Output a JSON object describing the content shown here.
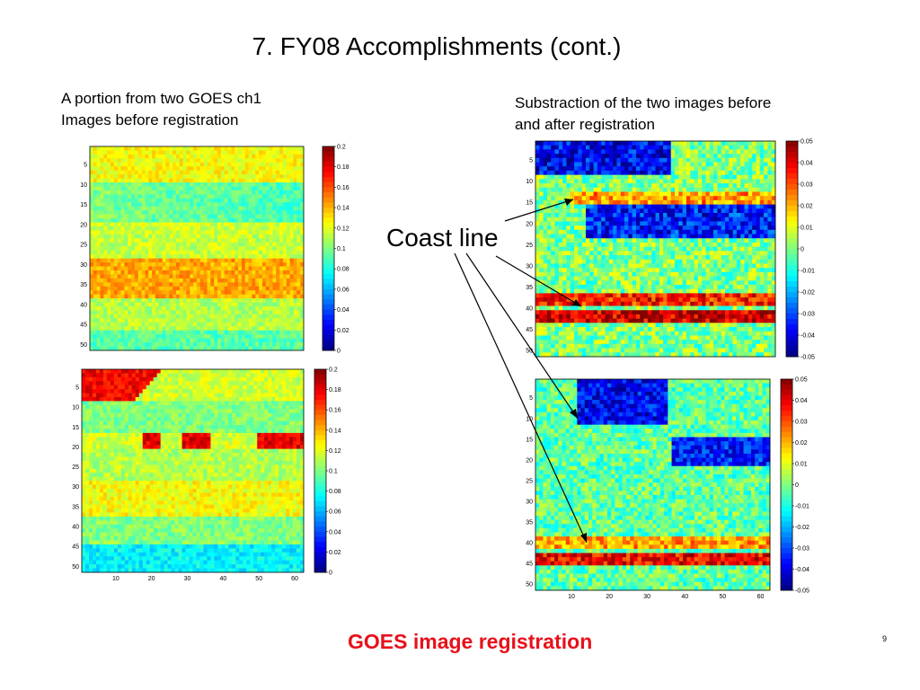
{
  "slide": {
    "title": "7. FY08 Accomplishments (cont.)",
    "caption_left_line1": "A portion from two GOES ch1",
    "caption_left_line2": "Images before registration",
    "caption_right_line1": "Substraction of the two images before",
    "caption_right_line2": "and after registration",
    "annotation": "Coast line",
    "footer": "GOES image registration",
    "footer_color": "#e8101a",
    "page_number": "9"
  },
  "chart_data": [
    {
      "type": "heatmap",
      "title": "",
      "description_role": "GOES ch1 image portion (top)",
      "x_ticks": [],
      "y_ticks": [
        5,
        10,
        15,
        20,
        25,
        30,
        35,
        40,
        45,
        50
      ],
      "colorbar_ticks": [
        "0.2",
        "0.18",
        "0.16",
        "0.14",
        "0.12",
        "0.1",
        "0.08",
        "0.06",
        "0.04",
        "0.02",
        "0"
      ],
      "colormap": "jet",
      "value_range": [
        0,
        0.2
      ]
    },
    {
      "type": "heatmap",
      "title": "",
      "description_role": "GOES ch1 image portion (bottom)",
      "x_ticks": [
        10,
        20,
        30,
        40,
        50,
        60
      ],
      "y_ticks": [
        5,
        10,
        15,
        20,
        25,
        30,
        35,
        40,
        45,
        50
      ],
      "colorbar_ticks": [
        "0.2",
        "0.18",
        "0.16",
        "0.14",
        "0.12",
        "0.1",
        "0.08",
        "0.06",
        "0.04",
        "0.02",
        "0"
      ],
      "colormap": "jet",
      "value_range": [
        0,
        0.2
      ]
    },
    {
      "type": "heatmap",
      "title": "",
      "description_role": "Difference before registration (top)",
      "x_ticks": [],
      "y_ticks": [
        5,
        10,
        15,
        20,
        25,
        30,
        35,
        40,
        45,
        50
      ],
      "colorbar_ticks": [
        "0.05",
        "0.04",
        "0.03",
        "0.02",
        "0.01",
        "0",
        "-0.01",
        "-0.02",
        "-0.03",
        "-0.04",
        "-0.05"
      ],
      "colormap": "jet",
      "value_range": [
        -0.05,
        0.05
      ]
    },
    {
      "type": "heatmap",
      "title": "",
      "description_role": "Difference after registration (bottom)",
      "x_ticks": [
        10,
        20,
        30,
        40,
        50,
        60
      ],
      "y_ticks": [
        5,
        10,
        15,
        20,
        25,
        30,
        35,
        40,
        45,
        50
      ],
      "colorbar_ticks": [
        "0.05",
        "0.04",
        "0.03",
        "0.02",
        "0.01",
        "0",
        "-0.01",
        "-0.02",
        "-0.03",
        "-0.04",
        "-0.05"
      ],
      "colormap": "jet",
      "value_range": [
        -0.05,
        0.05
      ]
    }
  ]
}
